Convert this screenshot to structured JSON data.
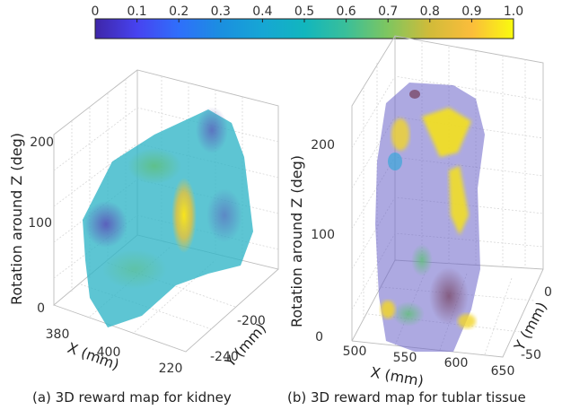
{
  "chart_data": {
    "type": "heatmap",
    "colorbar": {
      "ticks": [
        "0",
        "0.1",
        "0.2",
        "0.3",
        "0.4",
        "0.5",
        "0.6",
        "0.7",
        "0.8",
        "0.9",
        "1.0"
      ],
      "range": [
        0,
        1.0
      ],
      "colormap": "parula"
    },
    "plots": [
      {
        "caption": "(a) 3D reward map for kidney",
        "zlabel": "Rotation around Z (deg)",
        "xlabel": "X (mm)",
        "ylabel": "Y (mm)",
        "xticks": [
          "380",
          "400",
          "220"
        ],
        "yticks": [
          "-200",
          "-240"
        ],
        "zticks": [
          "200",
          "100",
          "0"
        ]
      },
      {
        "caption": "(b) 3D reward map for tublar tissue",
        "zlabel": "Rotation around Z (deg)",
        "xlabel": "X (mm)",
        "ylabel": "Y (mm)",
        "xticks": [
          "500",
          "550",
          "600",
          "650"
        ],
        "yticks": [
          "0",
          "-50"
        ],
        "zticks": [
          "200",
          "100",
          "0"
        ]
      }
    ]
  }
}
